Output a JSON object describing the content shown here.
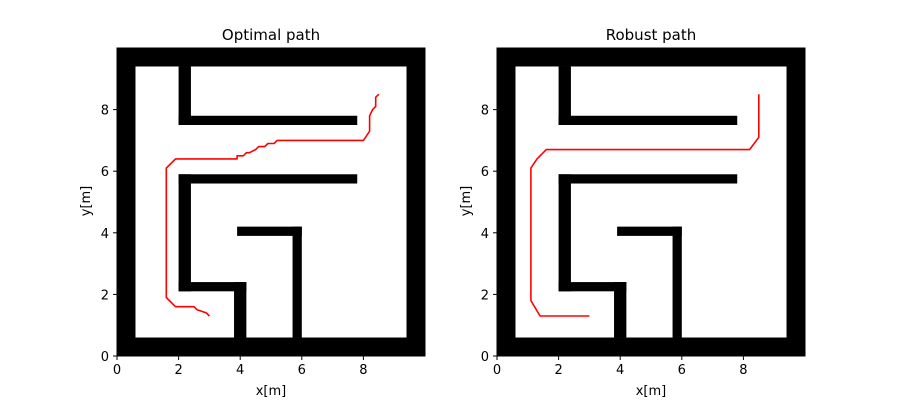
{
  "chart_data": [
    {
      "type": "line",
      "title": "Optimal path",
      "xlabel": "x[m]",
      "ylabel": "y[m]",
      "xlim": [
        0,
        10
      ],
      "ylim": [
        0,
        10
      ],
      "xticks": [
        0,
        2,
        4,
        6,
        8
      ],
      "yticks": [
        0,
        2,
        4,
        6,
        8
      ],
      "grid": false,
      "series": [
        {
          "color": "#ff0000",
          "x": [
            3.0,
            2.9,
            2.6,
            2.5,
            1.9,
            1.6,
            1.6,
            1.9,
            2.2,
            3.9,
            3.9,
            4.1,
            4.2,
            4.3,
            4.5,
            4.6,
            4.8,
            4.9,
            5.1,
            5.2,
            5.3,
            5.4,
            5.5,
            8.0,
            8.2,
            8.2,
            8.3,
            8.4,
            8.4,
            8.5
          ],
          "y": [
            1.3,
            1.4,
            1.5,
            1.6,
            1.6,
            1.9,
            6.1,
            6.4,
            6.4,
            6.4,
            6.5,
            6.5,
            6.6,
            6.6,
            6.7,
            6.8,
            6.8,
            6.9,
            6.9,
            7.0,
            7.0,
            7.0,
            7.0,
            7.0,
            7.3,
            7.8,
            8.0,
            8.1,
            8.4,
            8.5
          ]
        }
      ]
    },
    {
      "type": "line",
      "title": "Robust path",
      "xlabel": "x[m]",
      "ylabel": "y[m]",
      "xlim": [
        0,
        10
      ],
      "ylim": [
        0,
        10
      ],
      "xticks": [
        0,
        2,
        4,
        6,
        8
      ],
      "yticks": [
        0,
        2,
        4,
        6,
        8
      ],
      "grid": false,
      "series": [
        {
          "color": "#ff0000",
          "x": [
            3.0,
            1.4,
            1.1,
            1.1,
            1.3,
            1.6,
            8.2,
            8.5,
            8.5,
            8.5
          ],
          "y": [
            1.3,
            1.3,
            1.8,
            6.1,
            6.4,
            6.7,
            6.7,
            7.1,
            7.2,
            8.5
          ]
        }
      ]
    }
  ],
  "maze_walls": [
    {
      "x0": 0.0,
      "x1": 0.6,
      "y0": 0.0,
      "y1": 10.0
    },
    {
      "x0": 9.4,
      "x1": 10.0,
      "y0": 0.0,
      "y1": 10.0
    },
    {
      "x0": 0.0,
      "x1": 10.0,
      "y0": 0.0,
      "y1": 0.6
    },
    {
      "x0": 0.0,
      "x1": 10.0,
      "y0": 9.4,
      "y1": 10.0
    },
    {
      "x0": 2.0,
      "x1": 2.4,
      "y0": 7.5,
      "y1": 9.4
    },
    {
      "x0": 2.0,
      "x1": 7.8,
      "y0": 7.5,
      "y1": 7.8
    },
    {
      "x0": 2.0,
      "x1": 7.8,
      "y0": 5.6,
      "y1": 5.9
    },
    {
      "x0": 2.0,
      "x1": 2.4,
      "y0": 2.1,
      "y1": 5.9
    },
    {
      "x0": 2.0,
      "x1": 4.2,
      "y0": 2.1,
      "y1": 2.4
    },
    {
      "x0": 3.8,
      "x1": 4.2,
      "y0": 0.6,
      "y1": 2.4
    },
    {
      "x0": 3.9,
      "x1": 6.0,
      "y0": 3.9,
      "y1": 4.2
    },
    {
      "x0": 5.7,
      "x1": 6.0,
      "y0": 0.6,
      "y1": 4.2
    }
  ]
}
